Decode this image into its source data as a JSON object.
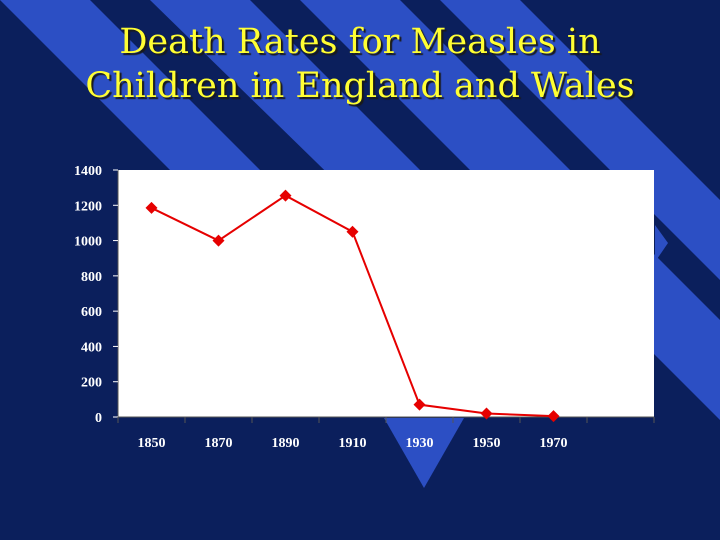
{
  "slide": {
    "title_line1": "Death Rates for Measles in",
    "title_line2": "Children in England and Wales"
  },
  "colors": {
    "background": "#0b1f5c",
    "stripe": "#2c4fc4",
    "title": "#ffff33",
    "plot_area": "#ffffff",
    "series": "#e60000"
  },
  "chart_data": {
    "type": "line",
    "title": "Death Rates for Measles in Children in England and Wales",
    "xlabel": "",
    "ylabel": "",
    "x": [
      "1850",
      "1870",
      "1890",
      "1910",
      "1930",
      "1950",
      "1970"
    ],
    "series": [
      {
        "values": [
          1185,
          1000,
          1255,
          1050,
          70,
          20,
          5
        ],
        "marker": "diamond"
      }
    ],
    "ylim": [
      0,
      1400
    ],
    "yticks": [
      0,
      200,
      400,
      600,
      800,
      1000,
      1200,
      1400
    ],
    "grid": false,
    "legend": "none"
  }
}
